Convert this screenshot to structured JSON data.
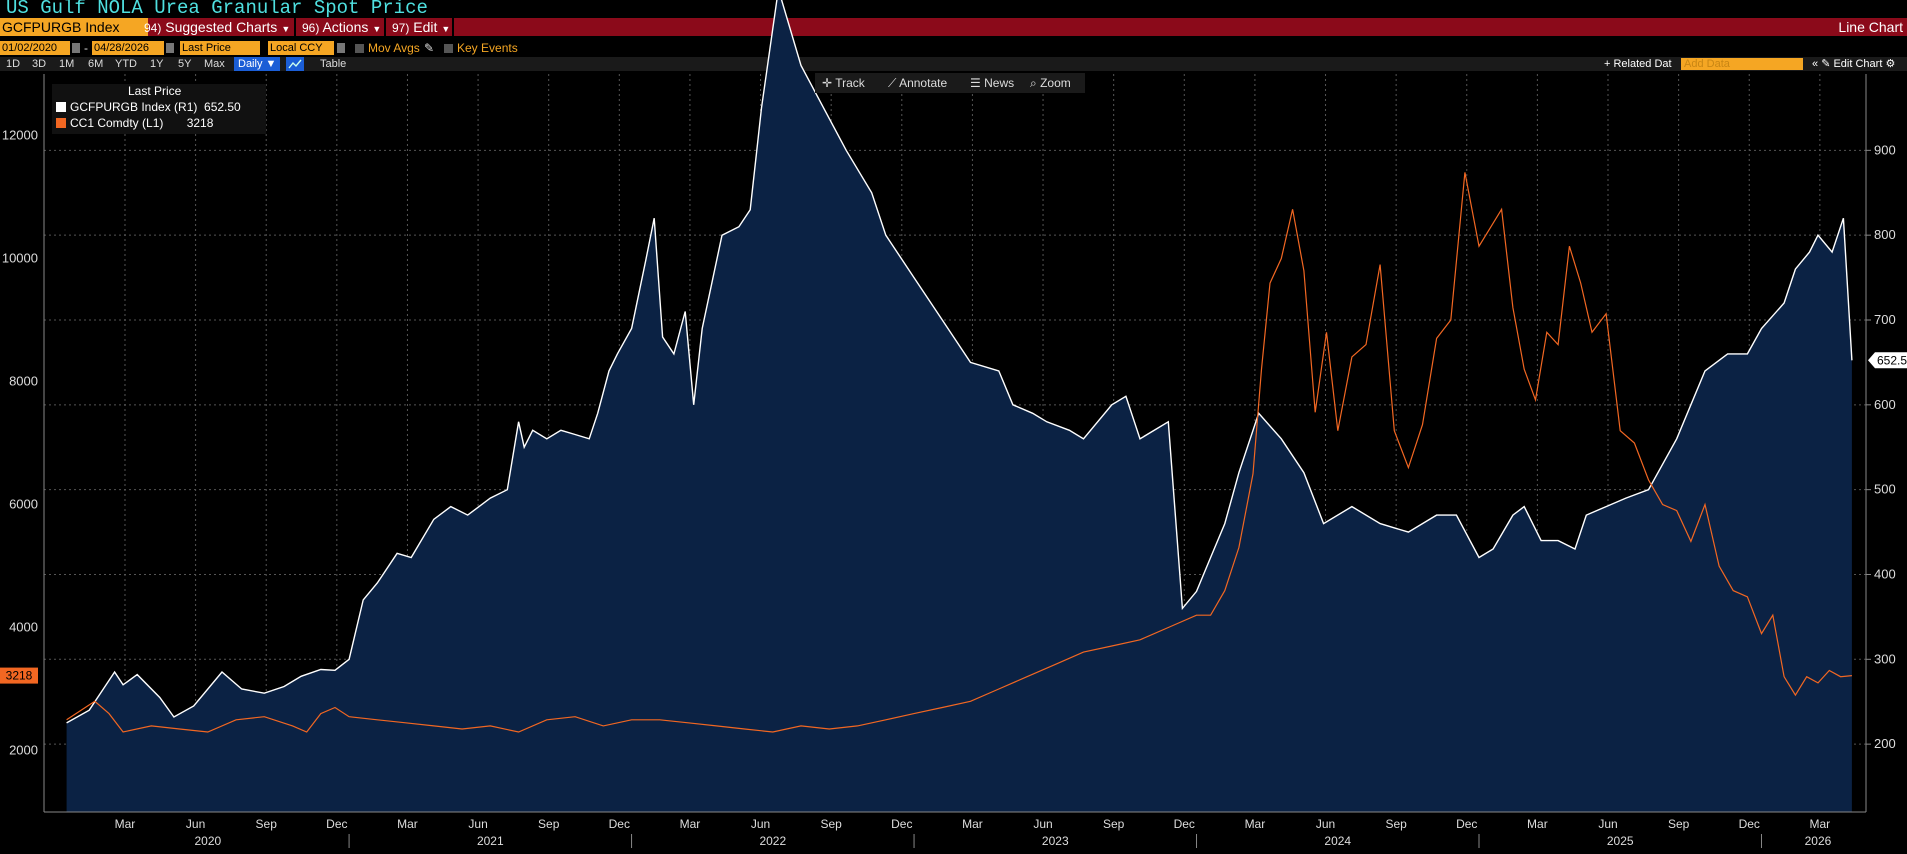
{
  "header": {
    "title": "US Gulf NOLA Urea Granular Spot Price",
    "ticker": "GCFPURGB Index",
    "menus": [
      {
        "num": "94)",
        "label": "Suggested Charts"
      },
      {
        "num": "96)",
        "label": "Actions"
      },
      {
        "num": "97)",
        "label": "Edit"
      }
    ],
    "chart_type": "Line Chart"
  },
  "controls": {
    "start_date": "01/02/2020",
    "end_date": "04/28/2026",
    "field": "Last Price",
    "currency": "Local CCY",
    "mov_avgs": "Mov Avgs",
    "key_events": "Key Events",
    "ranges": [
      "1D",
      "3D",
      "1M",
      "6M",
      "YTD",
      "1Y",
      "5Y",
      "Max"
    ],
    "frequency": "Daily",
    "table": "Table",
    "related": "+ Related Dat",
    "add_data_placeholder": "Add Data",
    "edit_chart": "Edit Chart"
  },
  "toolbar": {
    "track": "Track",
    "annotate": "Annotate",
    "news": "News",
    "zoom": "Zoom"
  },
  "legend": {
    "header": "Last Price",
    "items": [
      {
        "label": "GCFPURGB Index  (R1)",
        "value": "652.50",
        "color": "#ffffff"
      },
      {
        "label": "CC1 Comdty  (L1)",
        "value": "3218",
        "color": "#f26722"
      }
    ]
  },
  "colors": {
    "area_fill": "#0b2244",
    "urea_line": "#ffffff",
    "cocoa_line": "#f26722",
    "grid": "#555555"
  },
  "chart_data": {
    "type": "line",
    "left_axis": {
      "ticks": [
        "2000",
        "4000",
        "6000",
        "8000",
        "10000",
        "12000"
      ],
      "range": [
        1000,
        13000
      ],
      "last_label": "3218"
    },
    "right_axis": {
      "ticks": [
        "200",
        "300",
        "400",
        "500",
        "600",
        "700",
        "800",
        "900"
      ],
      "range": [
        120,
        990
      ],
      "last_label": "652.5"
    },
    "x_month_labels": [
      "Mar",
      "Jun",
      "Sep",
      "Dec",
      "Mar",
      "Jun",
      "Sep",
      "Dec",
      "Mar",
      "Jun",
      "Sep",
      "Dec",
      "Mar",
      "Jun",
      "Sep",
      "Dec",
      "Mar",
      "Jun",
      "Sep",
      "Dec",
      "Mar",
      "Jun",
      "Sep",
      "Dec",
      "Mar"
    ],
    "x_year_labels": [
      "2020",
      "2021",
      "2022",
      "2023",
      "2024",
      "2025",
      "2026"
    ],
    "series": [
      {
        "name": "GCFPURGB Index  (R1)",
        "axis": "right",
        "style": "area",
        "t": [
          2020.0,
          2020.08,
          2020.13,
          2020.17,
          2020.2,
          2020.25,
          2020.33,
          2020.38,
          2020.45,
          2020.55,
          2020.62,
          2020.7,
          2020.77,
          2020.83,
          2020.9,
          2020.95,
          2021.0,
          2021.05,
          2021.1,
          2021.17,
          2021.22,
          2021.3,
          2021.36,
          2021.42,
          2021.5,
          2021.56,
          2021.6,
          2021.62,
          2021.65,
          2021.7,
          2021.75,
          2021.8,
          2021.85,
          2021.88,
          2021.92,
          2021.95,
          2022.0,
          2022.05,
          2022.08,
          2022.11,
          2022.15,
          2022.19,
          2022.22,
          2022.25,
          2022.32,
          2022.38,
          2022.42,
          2022.46,
          2022.52,
          2022.6,
          2022.68,
          2022.76,
          2022.85,
          2022.9,
          2023.0,
          2023.1,
          2023.2,
          2023.3,
          2023.35,
          2023.42,
          2023.47,
          2023.55,
          2023.6,
          2023.7,
          2023.75,
          2023.8,
          2023.9,
          2023.95,
          2024.0,
          2024.05,
          2024.1,
          2024.15,
          2024.22,
          2024.3,
          2024.38,
          2024.45,
          2024.55,
          2024.65,
          2024.75,
          2024.85,
          2024.92,
          2025.0,
          2025.05,
          2025.12,
          2025.16,
          2025.22,
          2025.28,
          2025.34,
          2025.38,
          2025.45,
          2025.52,
          2025.6,
          2025.7,
          2025.8,
          2025.88,
          2025.95,
          2026.0,
          2026.08,
          2026.12,
          2026.17,
          2026.2,
          2026.25,
          2026.29,
          2026.32
        ],
        "values": [
          225,
          240,
          265,
          285,
          270,
          282,
          255,
          232,
          245,
          285,
          265,
          260,
          268,
          280,
          288,
          287,
          300,
          370,
          390,
          425,
          420,
          465,
          480,
          470,
          490,
          500,
          580,
          550,
          570,
          560,
          570,
          565,
          560,
          590,
          640,
          660,
          690,
          770,
          820,
          680,
          660,
          710,
          600,
          690,
          800,
          810,
          830,
          950,
          1090,
          1000,
          950,
          900,
          850,
          800,
          750,
          700,
          650,
          640,
          600,
          590,
          580,
          570,
          560,
          600,
          610,
          560,
          580,
          360,
          380,
          420,
          460,
          520,
          590,
          560,
          520,
          460,
          480,
          460,
          450,
          470,
          470,
          420,
          430,
          470,
          480,
          440,
          440,
          430,
          470,
          480,
          490,
          500,
          560,
          640,
          660,
          660,
          690,
          720,
          760,
          780,
          800,
          780,
          820,
          652.5
        ]
      },
      {
        "name": "CC1 Comdty  (L1)",
        "axis": "left",
        "style": "line",
        "t": [
          2020.0,
          2020.05,
          2020.1,
          2020.15,
          2020.2,
          2020.3,
          2020.4,
          2020.5,
          2020.6,
          2020.7,
          2020.8,
          2020.85,
          2020.9,
          2020.95,
          2021.0,
          2021.1,
          2021.2,
          2021.3,
          2021.4,
          2021.5,
          2021.6,
          2021.7,
          2021.8,
          2021.9,
          2022.0,
          2022.1,
          2022.2,
          2022.3,
          2022.4,
          2022.5,
          2022.6,
          2022.7,
          2022.8,
          2022.9,
          2023.0,
          2023.1,
          2023.2,
          2023.3,
          2023.4,
          2023.5,
          2023.6,
          2023.7,
          2023.8,
          2023.9,
          2024.0,
          2024.05,
          2024.1,
          2024.15,
          2024.2,
          2024.23,
          2024.26,
          2024.3,
          2024.34,
          2024.38,
          2024.42,
          2024.46,
          2024.5,
          2024.55,
          2024.6,
          2024.65,
          2024.7,
          2024.75,
          2024.8,
          2024.85,
          2024.9,
          2024.95,
          2025.0,
          2025.04,
          2025.08,
          2025.12,
          2025.16,
          2025.2,
          2025.24,
          2025.28,
          2025.32,
          2025.36,
          2025.4,
          2025.45,
          2025.5,
          2025.55,
          2025.6,
          2025.65,
          2025.7,
          2025.75,
          2025.8,
          2025.85,
          2025.9,
          2025.95,
          2026.0,
          2026.04,
          2026.08,
          2026.12,
          2026.16,
          2026.2,
          2026.24,
          2026.28,
          2026.32
        ],
        "values": [
          2500,
          2650,
          2800,
          2600,
          2300,
          2400,
          2350,
          2300,
          2500,
          2550,
          2400,
          2300,
          2600,
          2700,
          2550,
          2500,
          2450,
          2400,
          2350,
          2400,
          2300,
          2500,
          2550,
          2400,
          2500,
          2500,
          2450,
          2400,
          2350,
          2300,
          2400,
          2350,
          2400,
          2500,
          2600,
          2700,
          2800,
          3000,
          3200,
          3400,
          3600,
          3700,
          3800,
          4000,
          4200,
          4200,
          4600,
          5300,
          6500,
          8200,
          9600,
          10000,
          10800,
          9800,
          7500,
          8800,
          7200,
          8400,
          8600,
          9900,
          7200,
          6600,
          7300,
          8700,
          9000,
          11400,
          10200,
          10500,
          10800,
          9200,
          8200,
          7700,
          8800,
          8600,
          10200,
          9600,
          8800,
          9100,
          7200,
          7000,
          6400,
          6000,
          5900,
          5400,
          6000,
          5000,
          4600,
          4500,
          3900,
          4200,
          3200,
          2900,
          3200,
          3100,
          3300,
          3200,
          3218
        ]
      }
    ]
  }
}
